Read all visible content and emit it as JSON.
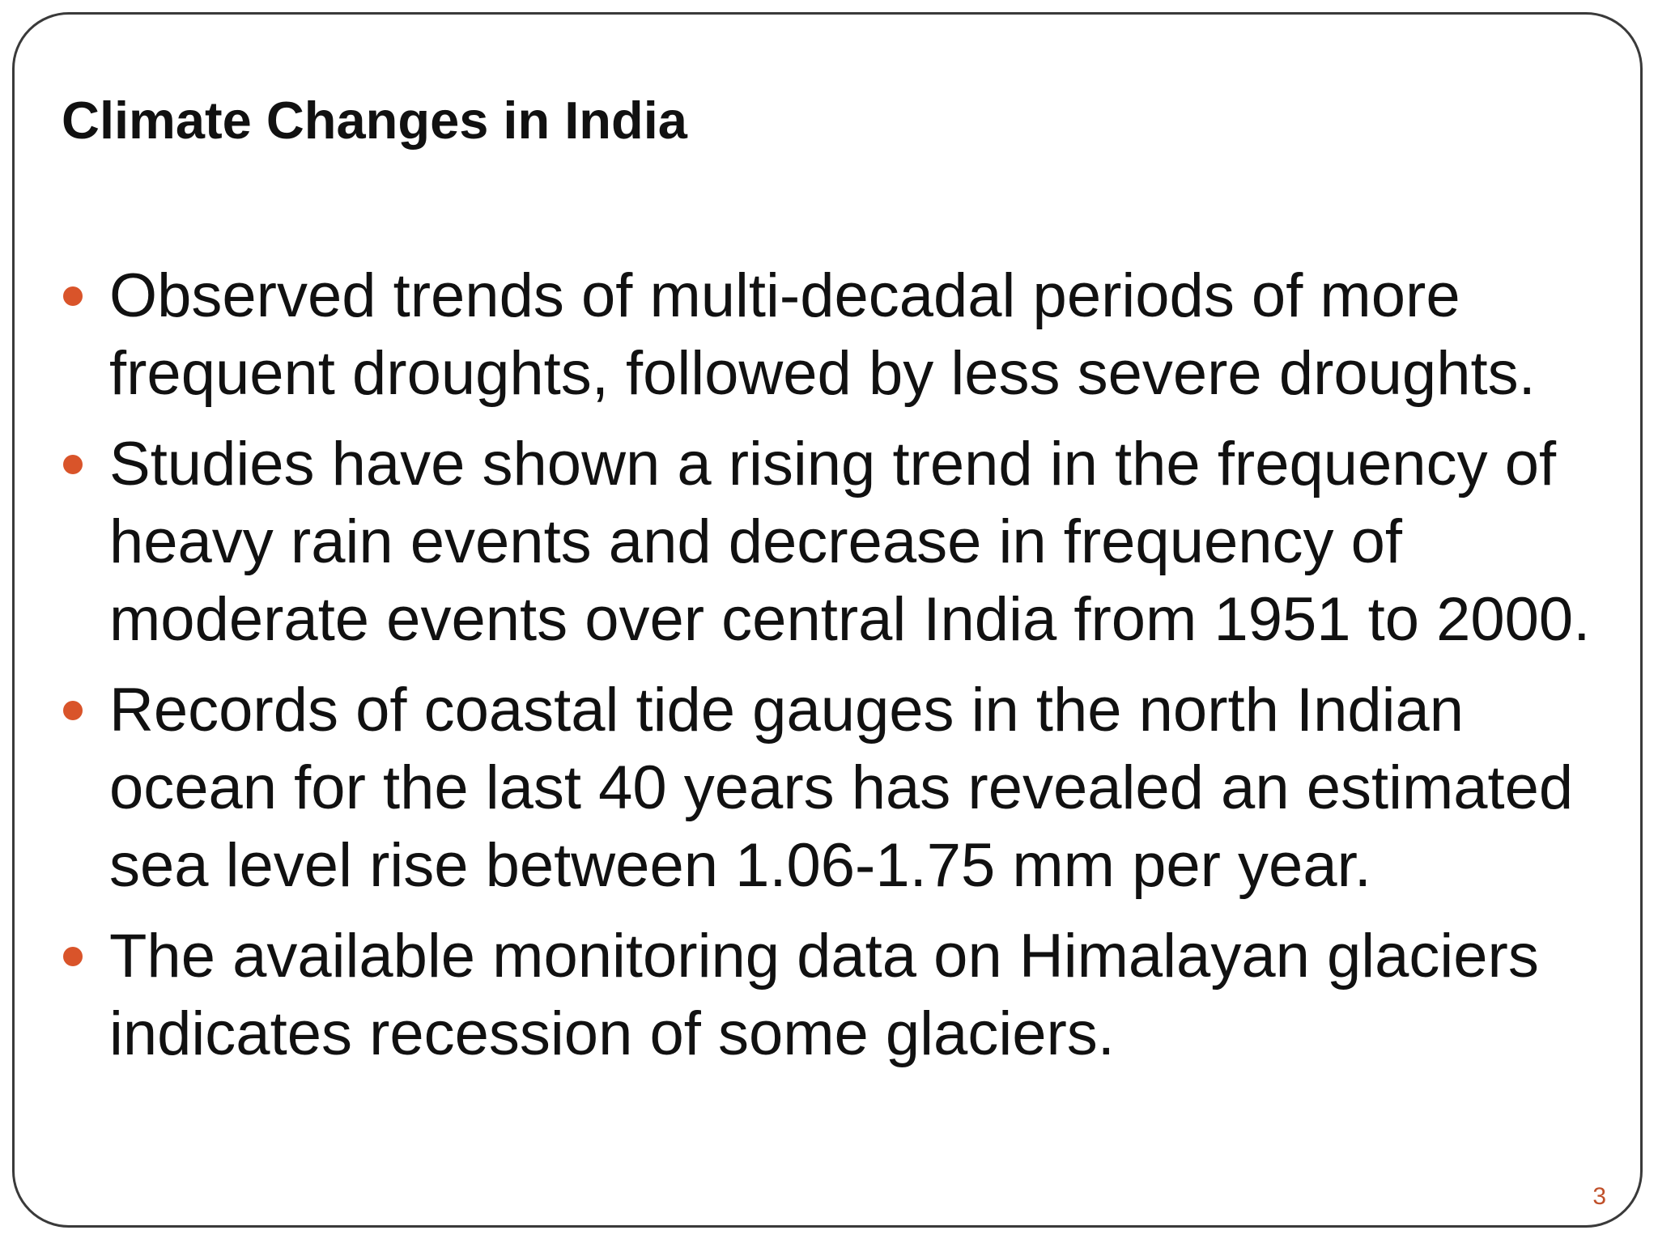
{
  "slide": {
    "title": "Climate Changes in India",
    "page_number": "3",
    "bullet_color": "#d9542a",
    "bullets": [
      "Observed trends of multi-decadal periods of more frequent droughts, followed by less severe droughts.",
      "Studies have shown a rising trend in the frequency of heavy rain events and decrease in frequency of moderate events over central India from 1951 to 2000.",
      "Records of coastal tide gauges in the north Indian ocean for the last 40 years has revealed an estimated sea level rise between 1.06-1.75 mm per year.",
      "The available monitoring data on Himalayan glaciers indicates recession of some glaciers."
    ]
  }
}
